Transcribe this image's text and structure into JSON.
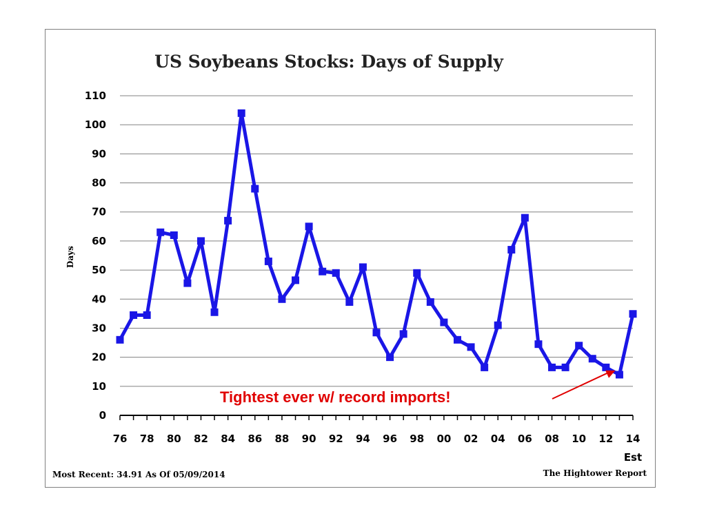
{
  "chart_data": {
    "type": "line",
    "title": "US Soybeans Stocks: Days of Supply",
    "ylabel": "Days",
    "xlabel": "",
    "ylim": [
      0,
      110
    ],
    "yticks": [
      0,
      10,
      20,
      30,
      40,
      50,
      60,
      70,
      80,
      90,
      100,
      110
    ],
    "grid": true,
    "x": [
      "76",
      "77",
      "78",
      "79",
      "80",
      "81",
      "82",
      "83",
      "84",
      "85",
      "86",
      "87",
      "88",
      "89",
      "90",
      "91",
      "92",
      "93",
      "94",
      "95",
      "96",
      "97",
      "98",
      "99",
      "00",
      "01",
      "02",
      "03",
      "04",
      "05",
      "06",
      "07",
      "08",
      "09",
      "10",
      "11",
      "12",
      "13",
      "14"
    ],
    "xtick_labels": [
      "76",
      "78",
      "80",
      "82",
      "84",
      "86",
      "88",
      "90",
      "92",
      "94",
      "96",
      "98",
      "00",
      "02",
      "04",
      "06",
      "08",
      "10",
      "12",
      "14"
    ],
    "x_extra_label": "Est",
    "series": [
      {
        "values": [
          26,
          34.5,
          34.5,
          63,
          62,
          45.5,
          60,
          35.5,
          67,
          104,
          78,
          53,
          40,
          46.5,
          65,
          49.5,
          49,
          39,
          51,
          28.5,
          20,
          28,
          49,
          39,
          32,
          26,
          23.5,
          16.5,
          31,
          57,
          68,
          24.5,
          16.5,
          16.5,
          24,
          19.5,
          16.5,
          14,
          34.91
        ],
        "color": "#1a16e6"
      }
    ],
    "annotation": "Tightest ever w/ record imports!",
    "annotation_color": "#e00000"
  },
  "footer": {
    "left": "Most Recent: 34.91 As Of 05/09/2014",
    "right": "The Hightower Report"
  }
}
